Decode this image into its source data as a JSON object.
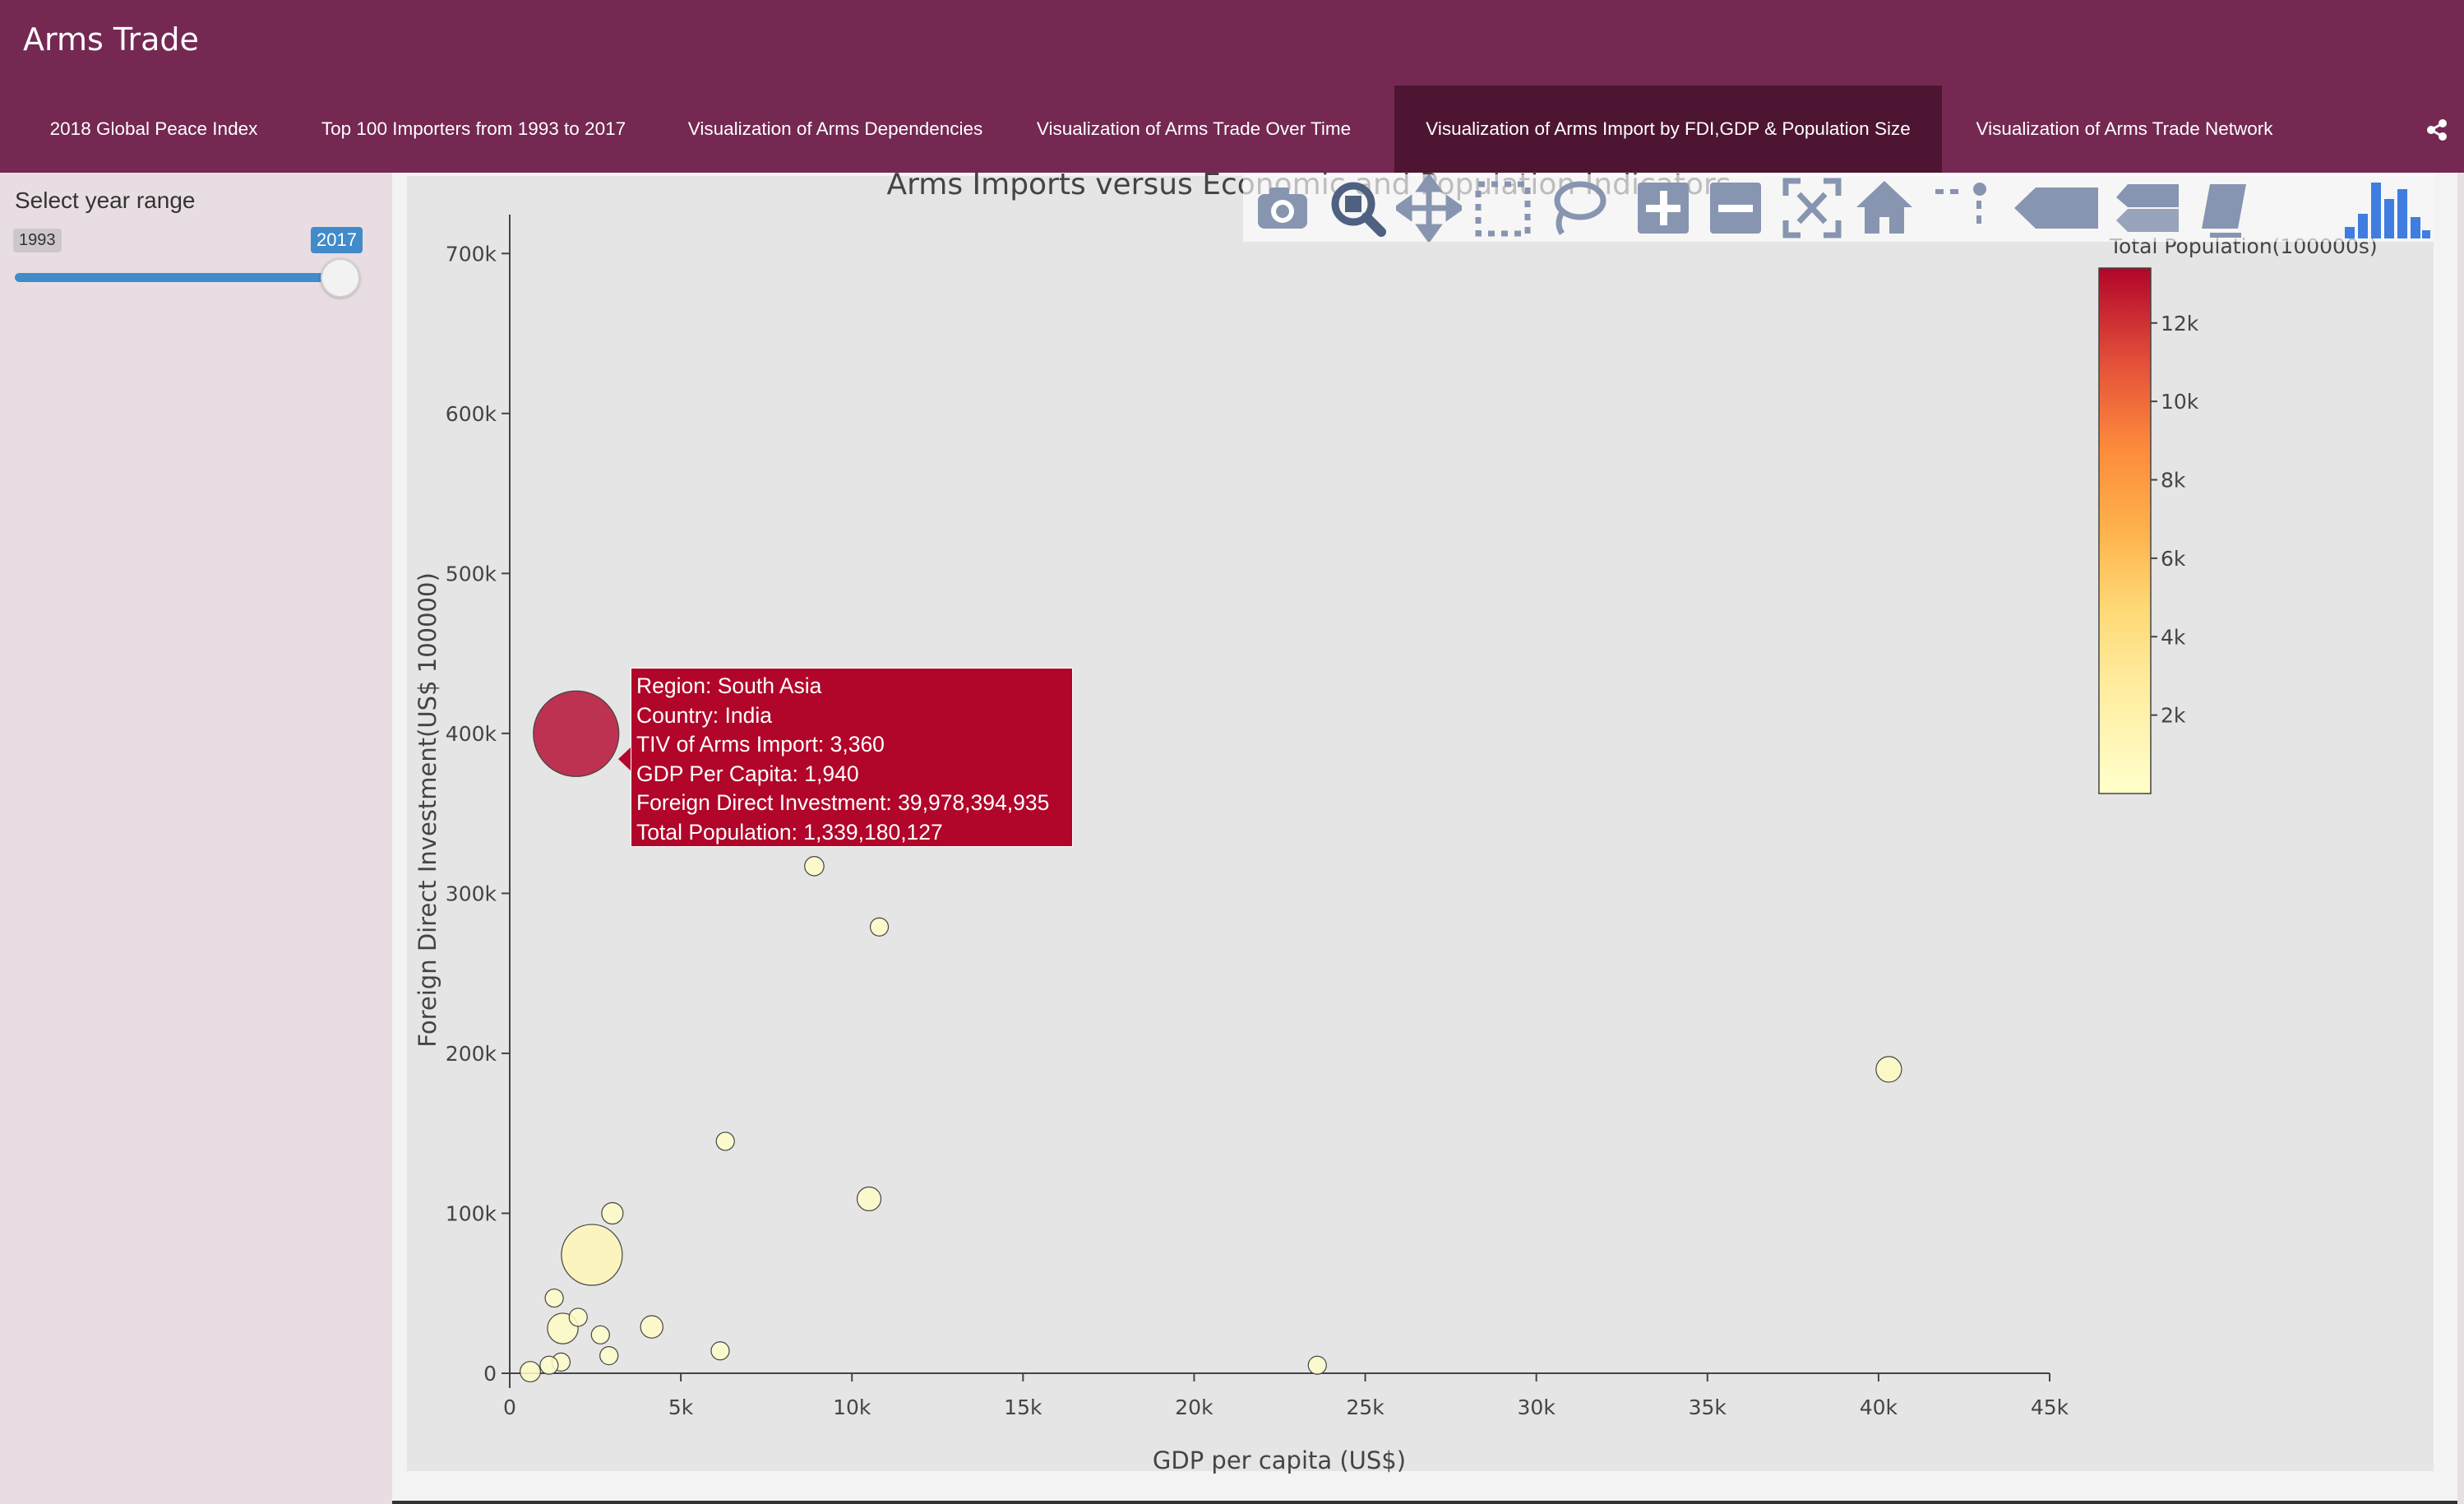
{
  "app": {
    "title": "Arms Trade"
  },
  "nav": {
    "tabs": [
      {
        "label": "2018 Global Peace Index",
        "active": false
      },
      {
        "label": "Top 100 Importers from 1993 to 2017",
        "active": false
      },
      {
        "label": "Visualization of Arms Dependencies",
        "active": false
      },
      {
        "label": "Visualization of Arms Trade Over Time",
        "active": false
      },
      {
        "label": "Visualization of Arms Import by FDI,GDP & Population Size",
        "active": true
      },
      {
        "label": "Visualization of Arms Trade Network",
        "active": false
      }
    ],
    "share_icon": "share-icon"
  },
  "sidebar": {
    "label": "Select year range",
    "slider": {
      "min": "1993",
      "max": "2017",
      "from": 1993,
      "to": 2017
    }
  },
  "modebar": {
    "buttons": [
      "camera-icon",
      "zoom-icon",
      "pan-icon",
      "box-select-icon",
      "lasso-icon",
      "zoom-in-icon",
      "zoom-out-icon",
      "autoscale-icon",
      "reset-axes-icon",
      "spike-lines-icon",
      "hover-closest-icon",
      "hover-compare-icon",
      "edit-chart-icon",
      "plotly-logo-icon"
    ]
  },
  "tooltip": {
    "line1": "Region: South Asia",
    "line2": "Country: India",
    "line3": "TIV of Arms Import: 3,360",
    "line4": "GDP Per Capita: 1,940",
    "line5": "Foreign Direct Investment: 39,978,394,935",
    "line6": "Total Population: 1,339,180,127",
    "color": "#b1052a"
  },
  "colorscale": [
    "#ffffcc",
    "#ffeda0",
    "#fed976",
    "#feb24c",
    "#fd8d3c",
    "#f03b20",
    "#bd0026"
  ],
  "chart_data": {
    "type": "scatter",
    "title": "Arms Imports versus Economic and Population Indicators",
    "xlabel": "GDP per capita (US$)",
    "ylabel": "Foreign Direct Investment(US$ 100000)",
    "xlim": [
      0,
      45000
    ],
    "ylim": [
      0,
      750000
    ],
    "x_ticks": [
      0,
      5000,
      10000,
      15000,
      20000,
      25000,
      30000,
      35000,
      40000,
      45000
    ],
    "x_tick_labels": [
      "0",
      "5k",
      "10k",
      "15k",
      "20k",
      "25k",
      "30k",
      "35k",
      "40k",
      "45k"
    ],
    "y_ticks": [
      0,
      100000,
      200000,
      300000,
      400000,
      500000,
      600000,
      700000
    ],
    "y_tick_labels": [
      "0",
      "100k",
      "200k",
      "300k",
      "400k",
      "500k",
      "600k",
      "700k"
    ],
    "grid": false,
    "colorbar": {
      "title": "Total Population(100000s)",
      "range": [
        0,
        13400
      ],
      "ticks": [
        2000,
        4000,
        6000,
        8000,
        10000,
        12000
      ],
      "tick_labels": [
        "2k",
        "4k",
        "6k",
        "8k",
        "10k",
        "12k"
      ]
    },
    "points": [
      {
        "x": 1940,
        "y": 399784,
        "size": 3360,
        "pop": 13392
      },
      {
        "x": 2400,
        "y": 74000,
        "size": 1700,
        "pop": 1200
      },
      {
        "x": 1550,
        "y": 28000,
        "size": 430,
        "pop": 500
      },
      {
        "x": 8900,
        "y": 317000,
        "size": 170,
        "pop": 300
      },
      {
        "x": 10800,
        "y": 279000,
        "size": 120,
        "pop": 200
      },
      {
        "x": 40300,
        "y": 190000,
        "size": 300,
        "pop": 600
      },
      {
        "x": 6300,
        "y": 145000,
        "size": 140,
        "pop": 200
      },
      {
        "x": 10500,
        "y": 109000,
        "size": 260,
        "pop": 300
      },
      {
        "x": 3000,
        "y": 100000,
        "size": 210,
        "pop": 250
      },
      {
        "x": 1300,
        "y": 47000,
        "size": 150,
        "pop": 200
      },
      {
        "x": 2000,
        "y": 35000,
        "size": 130,
        "pop": 200
      },
      {
        "x": 2650,
        "y": 24000,
        "size": 120,
        "pop": 150
      },
      {
        "x": 4150,
        "y": 29000,
        "size": 230,
        "pop": 300
      },
      {
        "x": 2900,
        "y": 11000,
        "size": 120,
        "pop": 150
      },
      {
        "x": 6150,
        "y": 14000,
        "size": 110,
        "pop": 150
      },
      {
        "x": 1500,
        "y": 7000,
        "size": 110,
        "pop": 150
      },
      {
        "x": 1150,
        "y": 5000,
        "size": 110,
        "pop": 150
      },
      {
        "x": 600,
        "y": 1000,
        "size": 190,
        "pop": 300
      },
      {
        "x": 23600,
        "y": 5000,
        "size": 110,
        "pop": 150
      }
    ]
  }
}
